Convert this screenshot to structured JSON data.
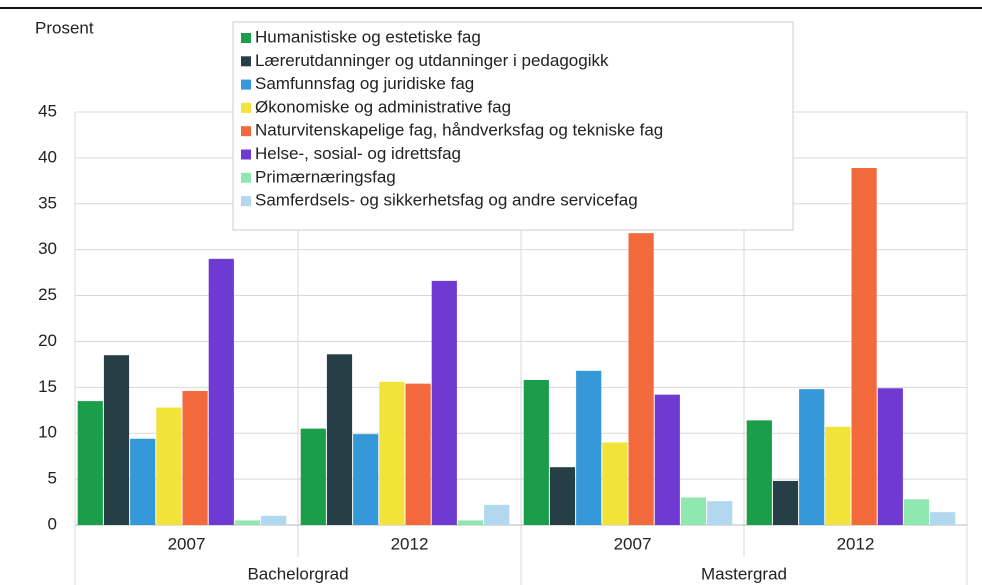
{
  "chart_data": {
    "type": "bar",
    "y_label": "Prosent",
    "categories": [
      "2007",
      "2012",
      "2007",
      "2012"
    ],
    "groups": [
      "Bachelorgrad",
      "Mastergrad"
    ],
    "series": [
      {
        "name": "Humanistiske og estetiske fag",
        "color": "#1a9e4a",
        "values": [
          13.5,
          10.5,
          15.8,
          11.4
        ]
      },
      {
        "name": "Lærerutdanninger og utdanninger i pedagogikk",
        "color": "#263f47",
        "values": [
          18.5,
          18.6,
          6.3,
          4.8
        ]
      },
      {
        "name": "Samfunnsfag og juridiske fag",
        "color": "#3598d8",
        "values": [
          9.4,
          9.9,
          16.8,
          14.8
        ]
      },
      {
        "name": "Økonomiske og administrative fag",
        "color": "#f2e33a",
        "values": [
          12.8,
          15.6,
          9.0,
          10.7
        ]
      },
      {
        "name": "Naturvitenskapelige fag, håndverksfag og tekniske fag",
        "color": "#f26a3b",
        "values": [
          14.6,
          15.4,
          31.8,
          38.9
        ]
      },
      {
        "name": "Helse-, sosial- og idrettsfag",
        "color": "#6f3ad1",
        "values": [
          29.0,
          26.6,
          14.2,
          14.9
        ]
      },
      {
        "name": "Primærnæringsfag",
        "color": "#8fe8b0",
        "values": [
          0.5,
          0.5,
          3.0,
          2.8
        ]
      },
      {
        "name": "Samferdsels- og sikkerhetsfag og andre servicefag",
        "color": "#b2d8ef",
        "values": [
          1.0,
          2.2,
          2.6,
          1.4
        ]
      }
    ],
    "ylim": [
      0,
      45
    ],
    "yticks": [
      0,
      5,
      10,
      15,
      20,
      25,
      30,
      35,
      40,
      45
    ],
    "grid": true
  }
}
